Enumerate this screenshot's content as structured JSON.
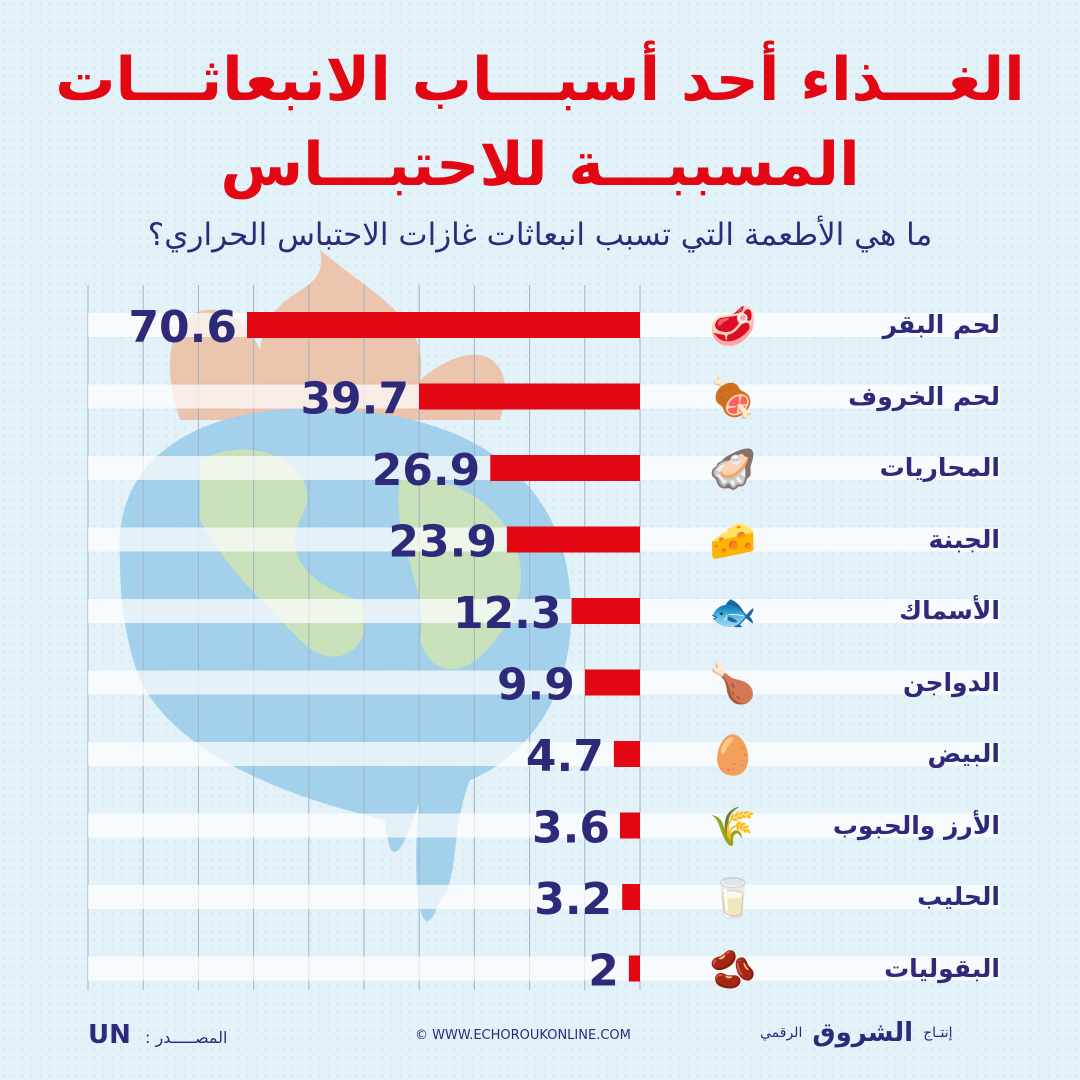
{
  "title_line1": "الغـــذاء أحد أسبـــاب الانبعاثـــات",
  "title_line2": "المسببـــة للاحتبـــاس",
  "subtitle": "ما هي الأطعمة التي تسبب انبعاثات غازات الاحتباس الحراري؟",
  "colors": {
    "bar": "#e30613",
    "text": "#2d2a7a",
    "title": "#e30613"
  },
  "chart_data": {
    "type": "bar",
    "orientation": "horizontal",
    "title": "ما هي الأطعمة التي تسبب انبعاثات غازات الاحتباس الحراري؟",
    "categories": [
      "لحم البقر",
      "لحم الخروف",
      "المحاريات",
      "الجبنة",
      "الأسماك",
      "الدواجن",
      "البيض",
      "الأرز والحبوب",
      "الحليب",
      "البقوليات"
    ],
    "values": [
      70.6,
      39.7,
      26.9,
      23.9,
      12.3,
      9.9,
      4.7,
      3.6,
      3.2,
      2
    ],
    "labels": [
      "70.6",
      "39.7",
      "26.9",
      "23.9",
      "12.3",
      "9.9",
      "4.7",
      "3.6",
      "3.2",
      "2"
    ],
    "icons": [
      "beef-icon",
      "lamb-icon",
      "mussel-icon",
      "cheese-icon",
      "fish-icon",
      "chicken-icon",
      "eggs-icon",
      "rice-icon",
      "milk-icon",
      "legumes-icon"
    ],
    "xlim": [
      0,
      70.6
    ],
    "grid": true
  },
  "footer": {
    "source_label": "المصـــــدر :",
    "source_value": "UN",
    "website": "© WWW.ECHOROUKONLINE.COM",
    "produced_by": "إنتـاج",
    "brand": "الشروق",
    "brand_suffix": "الرقمي"
  }
}
